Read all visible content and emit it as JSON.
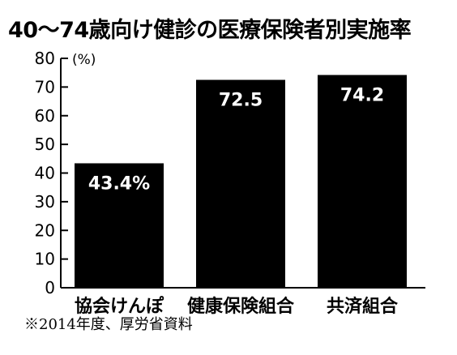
{
  "chart_data": {
    "type": "bar",
    "title": "40〜74歳向け健診の医療保険者別実施率",
    "unit_label": "(%)",
    "categories": [
      "協会けんぽ",
      "健康保険組合",
      "共済組合"
    ],
    "values": [
      43.4,
      72.5,
      74.2
    ],
    "value_labels": [
      "43.4%",
      "72.5",
      "74.2"
    ],
    "ylim": [
      0,
      80
    ],
    "yticks": [
      0,
      10,
      20,
      30,
      40,
      50,
      60,
      70,
      80
    ],
    "grid": false,
    "bar_color": "#000000",
    "value_label_color": "#ffffff",
    "note": "※2014年度、厚労省資料"
  }
}
